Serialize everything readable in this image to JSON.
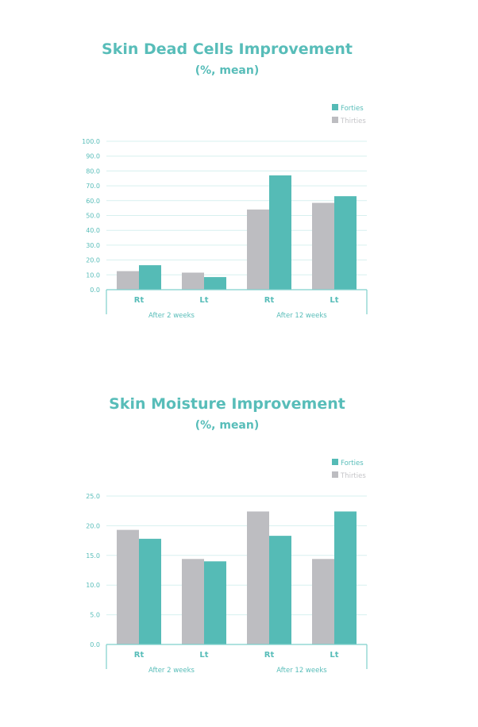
{
  "colors": {
    "accent": "#55bbb6",
    "secondary": "#bdbdc1",
    "grid": "#d7f0ef",
    "axis": "#7fd0cc",
    "text": "#58bdb9",
    "legend_secondary_text": "#c5c5c8"
  },
  "chart_data": [
    {
      "type": "bar",
      "title": "Skin Dead Cells Improvement",
      "subtitle": "(%, mean)",
      "categories": [
        "Rt",
        "Lt",
        "Rt",
        "Lt"
      ],
      "groups": [
        {
          "label": "After 2 weeks",
          "span": [
            0,
            1
          ]
        },
        {
          "label": "After 12 weeks",
          "span": [
            2,
            3
          ]
        }
      ],
      "series": [
        {
          "name": "Thirties",
          "color": "#bdbdc1",
          "values": [
            12.5,
            11.5,
            54.0,
            58.5
          ]
        },
        {
          "name": "Forties",
          "color": "#55bbb6",
          "values": [
            16.5,
            8.5,
            77.0,
            63.0
          ]
        }
      ],
      "legend": [
        "Forties",
        "Thirties"
      ],
      "legend_position": "top-right",
      "ylim": [
        0,
        100
      ],
      "yticks": [
        "0.0",
        "10.0",
        "20.0",
        "30.0",
        "40.0",
        "50.0",
        "60.0",
        "70.0",
        "80.0",
        "90.0",
        "100.0"
      ],
      "grid": true
    },
    {
      "type": "bar",
      "title": "Skin Moisture Improvement",
      "subtitle": "(%, mean)",
      "categories": [
        "Rt",
        "Lt",
        "Rt",
        "Lt"
      ],
      "groups": [
        {
          "label": "After 2 weeks",
          "span": [
            0,
            1
          ]
        },
        {
          "label": "After 12 weeks",
          "span": [
            2,
            3
          ]
        }
      ],
      "series": [
        {
          "name": "Thirties",
          "color": "#bdbdc1",
          "values": [
            19.3,
            14.4,
            22.4,
            14.4
          ]
        },
        {
          "name": "Forties",
          "color": "#55bbb6",
          "values": [
            17.8,
            14.0,
            18.3,
            22.4
          ]
        }
      ],
      "legend": [
        "Forties",
        "Thirties"
      ],
      "legend_position": "top-right",
      "ylim": [
        0,
        25
      ],
      "yticks": [
        "0.0",
        "5.0",
        "10.0",
        "15.0",
        "20.0",
        "25.0"
      ],
      "grid": true
    }
  ]
}
